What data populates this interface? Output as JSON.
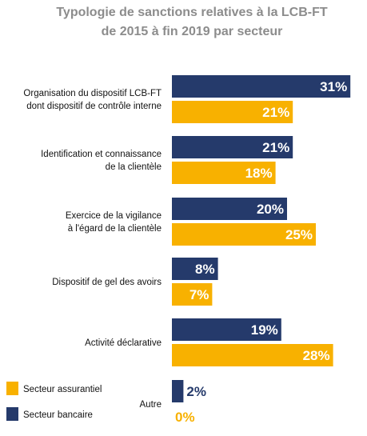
{
  "chart_data": {
    "type": "bar",
    "orientation": "horizontal",
    "title_lines": [
      "Typologie de sanctions relatives à la LCB-FT",
      "de 2015 à fin 2019 par secteur"
    ],
    "categories": [
      [
        "Organisation du dispositif LCB-FT",
        "dont dispositif de contrôle interne"
      ],
      [
        "Identification et connaissance",
        "de la clientèle"
      ],
      [
        "Exercice de la vigilance",
        "à l'égard de la clientèle"
      ],
      [
        "Dispositif de gel des avoirs"
      ],
      [
        "Activité déclarative"
      ],
      [
        "Autre"
      ]
    ],
    "series": [
      {
        "name": "Secteur bancaire",
        "color": "#253a6b",
        "label_color": "#ffffff",
        "values": [
          31,
          21,
          20,
          8,
          19,
          2
        ],
        "labels": [
          "31%",
          "21%",
          "20%",
          "8%",
          "19%",
          "2%"
        ]
      },
      {
        "name": "Secteur assurantiel",
        "color": "#f8b100",
        "label_color": "#ffffff",
        "values": [
          21,
          18,
          25,
          7,
          28,
          0
        ],
        "labels": [
          "21%",
          "18%",
          "25%",
          "7%",
          "28%",
          "0%"
        ]
      }
    ],
    "xlim": [
      0,
      31
    ],
    "grid": false,
    "legend_position": "bottom-left",
    "legend_order": [
      "Secteur assurantiel",
      "Secteur bancaire"
    ]
  }
}
